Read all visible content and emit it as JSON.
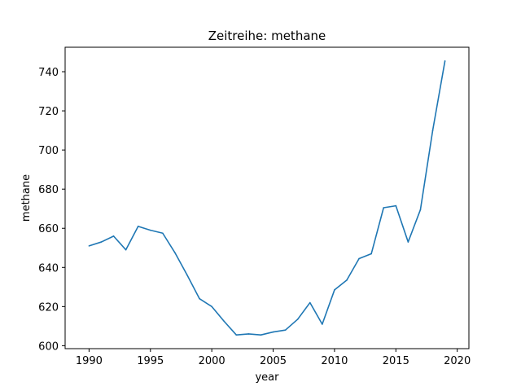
{
  "chart_data": {
    "type": "line",
    "title": "Zeitreihe: methane",
    "xlabel": "year",
    "ylabel": "methane",
    "xlim": [
      1988.05,
      2020.95
    ],
    "ylim": [
      598.5,
      752.5
    ],
    "xticks": [
      1990,
      1995,
      2000,
      2005,
      2010,
      2015,
      2020
    ],
    "yticks": [
      600,
      620,
      640,
      660,
      680,
      700,
      720,
      740
    ],
    "grid": false,
    "series": [
      {
        "color": "#1f77b4",
        "x": [
          1990,
          1991,
          1992,
          1993,
          1994,
          1995,
          1996,
          1997,
          1998,
          1999,
          2000,
          2001,
          2002,
          2003,
          2004,
          2005,
          2006,
          2007,
          2008,
          2009,
          2010,
          2011,
          2012,
          2013,
          2014,
          2015,
          2016,
          2017,
          2018,
          2019
        ],
        "y": [
          651,
          653,
          656,
          649,
          661,
          659,
          657.5,
          647.5,
          636,
          624,
          620,
          612.5,
          605.5,
          606,
          605.5,
          607,
          608,
          613.5,
          622,
          611,
          628.5,
          633.5,
          644.5,
          647,
          670.5,
          671.5,
          653,
          669.5,
          710,
          745.5
        ]
      }
    ]
  }
}
